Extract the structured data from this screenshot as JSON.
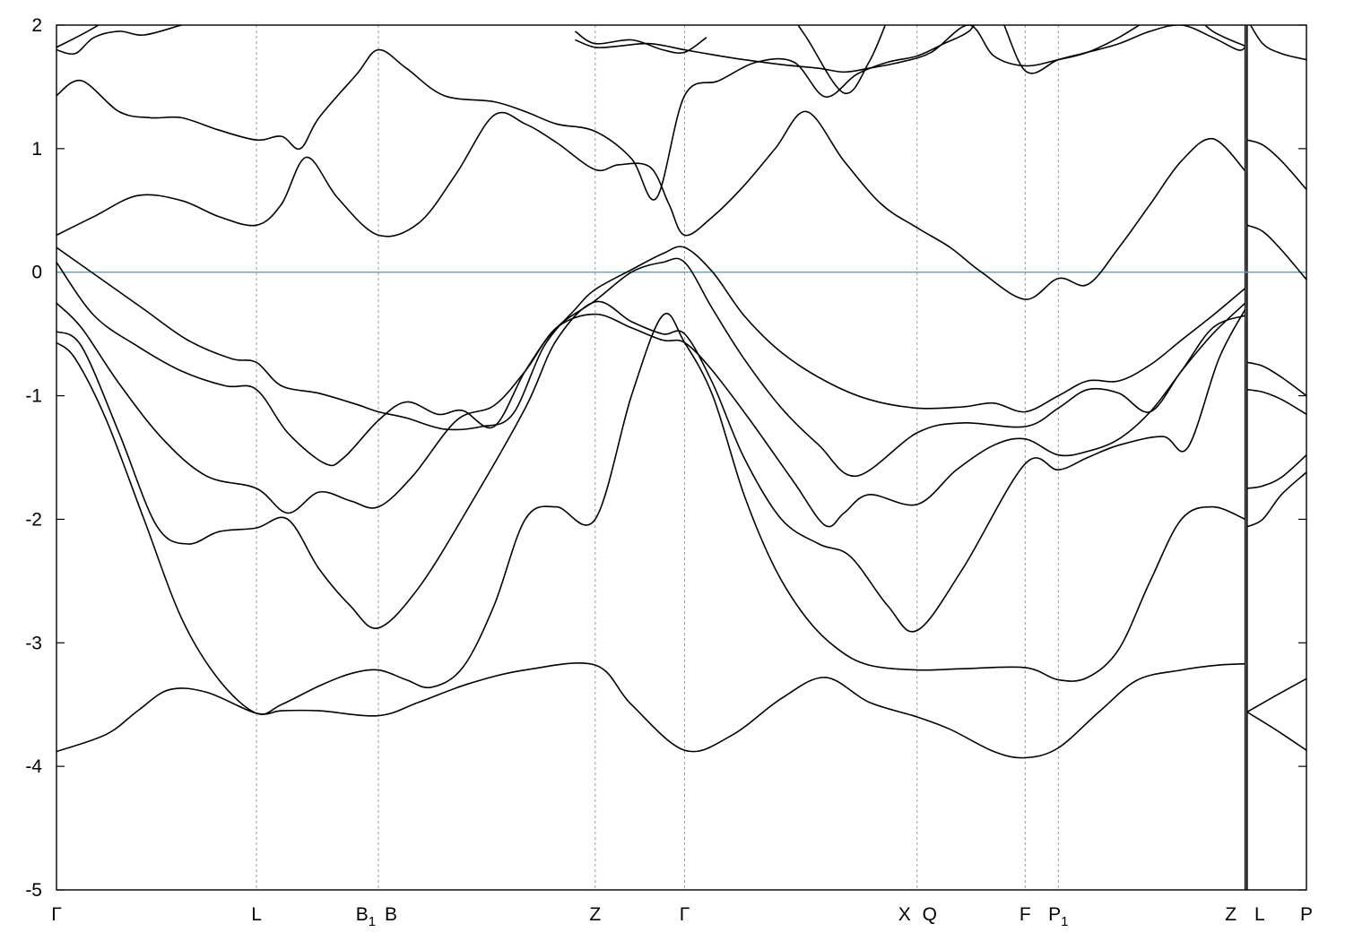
{
  "chart_data": {
    "type": "line",
    "title": "",
    "xlabel": "",
    "ylabel": "",
    "ylim": [
      -5,
      2
    ],
    "xlim": [
      0,
      20
    ],
    "y_ticks": [
      "2",
      "1",
      "0",
      "-1",
      "-2",
      "-3",
      "-4",
      "-5"
    ],
    "y_tick_values": [
      2,
      1,
      0,
      -1,
      -2,
      -3,
      -4,
      -5
    ],
    "k_points": [
      {
        "label": "Γ",
        "x": 0
      },
      {
        "label": "L",
        "x": 3.2
      },
      {
        "label": "B",
        "sub": "1",
        "label2": "B",
        "x": 5.15
      },
      {
        "label": "Z",
        "x": 8.62
      },
      {
        "label": "Γ",
        "x": 10.05
      },
      {
        "label": "X",
        "label2": "Q",
        "x": 13.77
      },
      {
        "label": "F",
        "x": 15.5
      },
      {
        "label": "P",
        "sub": "1",
        "x": 16.03
      },
      {
        "label": "Z",
        "x": 19.02
      },
      {
        "label": "L",
        "x": 19.05
      },
      {
        "label": "P",
        "x": 20
      }
    ],
    "fermi_level": 0,
    "fermi_color": "#4fa6c0",
    "grid": false,
    "series": [
      {
        "x": [
          0,
          0.8,
          1.3,
          1.8,
          2.4,
          3.2,
          3.6,
          4.2,
          5.15,
          5.8,
          6.6,
          7.5,
          8.62,
          9.2,
          10.05,
          10.8,
          11.6,
          12.3,
          13.0,
          13.77,
          14.3,
          15.0,
          15.5,
          16.03,
          16.7,
          17.3,
          18.0,
          18.6,
          19.02
        ],
        "y": [
          -3.88,
          -3.74,
          -3.55,
          -3.38,
          -3.4,
          -3.57,
          -3.55,
          -3.55,
          -3.59,
          -3.48,
          -3.33,
          -3.22,
          -3.18,
          -3.5,
          -3.87,
          -3.75,
          -3.45,
          -3.28,
          -3.48,
          -3.6,
          -3.7,
          -3.88,
          -3.93,
          -3.85,
          -3.55,
          -3.3,
          -3.22,
          -3.18,
          -3.17
        ]
      },
      {
        "x": [
          0,
          0.3,
          0.8,
          1.4,
          2.0,
          2.6,
          3.2,
          3.6,
          4.2,
          4.7,
          5.15,
          5.6,
          6.0,
          6.5,
          7.0,
          7.5,
          8.0,
          8.62,
          9.2,
          9.7,
          10.05,
          10.5,
          11.0,
          11.5,
          12.0,
          12.5,
          13.0,
          13.77,
          14.5,
          15.5,
          16.03,
          16.5,
          17.0,
          17.5,
          18.0,
          18.5,
          19.02
        ],
        "y": [
          -0.57,
          -0.7,
          -1.2,
          -2.0,
          -2.8,
          -3.3,
          -3.57,
          -3.5,
          -3.35,
          -3.25,
          -3.22,
          -3.3,
          -3.36,
          -3.2,
          -2.7,
          -2.0,
          -1.9,
          -2.0,
          -1.0,
          -0.35,
          -0.57,
          -1.0,
          -1.8,
          -2.4,
          -2.8,
          -3.05,
          -3.18,
          -3.22,
          -3.21,
          -3.2,
          -3.3,
          -3.28,
          -3.05,
          -2.5,
          -2.0,
          -1.9,
          -2.0
        ]
      },
      {
        "x": [
          0,
          0.4,
          1.0,
          1.6,
          2.1,
          2.6,
          3.2,
          3.7,
          4.2,
          4.7,
          5.15,
          5.8,
          6.6,
          7.5,
          8.0,
          8.62,
          9.2,
          9.7,
          10.05,
          10.5,
          11.0,
          11.6,
          12.2,
          12.7,
          13.3,
          13.77,
          14.5,
          15.5,
          16.03,
          16.5,
          17.0,
          17.7,
          18.1,
          18.6,
          19.02
        ],
        "y": [
          -0.48,
          -0.6,
          -1.3,
          -2.05,
          -2.2,
          -2.1,
          -2.07,
          -2.0,
          -2.4,
          -2.7,
          -2.88,
          -2.55,
          -1.9,
          -1.1,
          -0.55,
          -0.24,
          -0.4,
          -0.5,
          -0.5,
          -0.9,
          -1.5,
          -2.0,
          -2.2,
          -2.3,
          -2.7,
          -2.9,
          -2.4,
          -1.55,
          -1.6,
          -1.5,
          -1.4,
          -1.33,
          -1.42,
          -0.7,
          -0.3
        ]
      },
      {
        "x": [
          0,
          0.4,
          1.0,
          1.7,
          2.4,
          3.2,
          3.7,
          4.2,
          4.7,
          5.15,
          5.7,
          6.4,
          7.0,
          7.5,
          8.0,
          8.62,
          9.2,
          9.7,
          10.05,
          10.5,
          11.1,
          11.8,
          12.3,
          12.6,
          13.0,
          13.77,
          14.4,
          15.0,
          15.5,
          16.03,
          16.5,
          17.0,
          17.5,
          18.0,
          18.5,
          19.02
        ],
        "y": [
          -0.25,
          -0.45,
          -0.9,
          -1.35,
          -1.65,
          -1.75,
          -1.95,
          -1.78,
          -1.85,
          -1.9,
          -1.65,
          -1.2,
          -1.08,
          -0.8,
          -0.45,
          -0.34,
          -0.45,
          -0.55,
          -0.57,
          -0.8,
          -1.2,
          -1.7,
          -2.05,
          -1.95,
          -1.8,
          -1.88,
          -1.6,
          -1.4,
          -1.35,
          -1.48,
          -1.45,
          -1.35,
          -1.13,
          -0.8,
          -0.45,
          -0.35
        ]
      },
      {
        "x": [
          0,
          0.6,
          1.3,
          2.0,
          2.7,
          3.2,
          3.7,
          4.3,
          4.6,
          5.15,
          5.6,
          6.1,
          6.5,
          7.0,
          7.5,
          8.0,
          8.62,
          9.2,
          9.7,
          10.05,
          10.5,
          11.0,
          11.6,
          12.2,
          12.8,
          13.77,
          14.5,
          15.5,
          16.03,
          16.5,
          17.0,
          17.5,
          18.0,
          18.5,
          19.02
        ],
        "y": [
          0.08,
          -0.35,
          -0.6,
          -0.8,
          -0.92,
          -0.95,
          -1.3,
          -1.55,
          -1.5,
          -1.2,
          -1.05,
          -1.15,
          -1.12,
          -1.25,
          -0.8,
          -0.45,
          -0.23,
          0.0,
          0.08,
          0.08,
          -0.3,
          -0.7,
          -1.1,
          -1.4,
          -1.65,
          -1.3,
          -1.22,
          -1.25,
          -1.1,
          -0.95,
          -0.98,
          -1.13,
          -0.8,
          -0.5,
          -0.25
        ]
      },
      {
        "x": [
          0,
          0.7,
          1.4,
          2.1,
          2.8,
          3.2,
          3.6,
          4.2,
          4.8,
          5.15,
          5.6,
          6.2,
          6.8,
          7.3,
          7.8,
          8.3,
          8.62,
          9.2,
          9.7,
          10.05,
          10.5,
          11.0,
          11.6,
          12.3,
          13.0,
          13.77,
          14.5,
          15.0,
          15.5,
          16.03,
          16.5,
          17.0,
          17.5,
          18.0,
          18.5,
          19.02
        ],
        "y": [
          0.2,
          -0.05,
          -0.3,
          -0.55,
          -0.7,
          -0.73,
          -0.92,
          -0.98,
          -1.07,
          -1.13,
          -1.18,
          -1.27,
          -1.25,
          -1.15,
          -0.6,
          -0.3,
          -0.14,
          0.02,
          0.15,
          0.2,
          0.0,
          -0.35,
          -0.65,
          -0.88,
          -1.03,
          -1.1,
          -1.09,
          -1.06,
          -1.13,
          -1.0,
          -0.88,
          -0.88,
          -0.75,
          -0.55,
          -0.35,
          -0.13
        ]
      },
      {
        "x": [
          0,
          0.6,
          1.3,
          2.0,
          2.6,
          3.2,
          3.6,
          4.0,
          4.5,
          5.15,
          5.8,
          6.4,
          7.0,
          7.5,
          8.0,
          8.62,
          9.0,
          9.5,
          9.8,
          10.05,
          10.5,
          11.0,
          11.5,
          12.0,
          12.6,
          13.2,
          13.77,
          14.3,
          14.8,
          15.5,
          16.03,
          16.5,
          17.0,
          17.5,
          18.0,
          18.5,
          19.02
        ],
        "y": [
          0.3,
          0.45,
          0.62,
          0.58,
          0.45,
          0.38,
          0.55,
          0.93,
          0.6,
          0.3,
          0.4,
          0.8,
          1.27,
          1.2,
          1.05,
          0.83,
          0.87,
          0.85,
          0.55,
          0.3,
          0.45,
          0.7,
          1.0,
          1.3,
          0.9,
          0.55,
          0.36,
          0.2,
          0.0,
          -0.22,
          -0.05,
          -0.1,
          0.2,
          0.55,
          0.9,
          1.08,
          0.82
        ]
      },
      {
        "x": [
          0,
          0.4,
          1.0,
          1.5,
          2.0,
          2.6,
          3.2,
          3.6,
          3.9,
          4.2,
          4.8,
          5.15,
          5.6,
          6.2,
          7.0,
          7.5,
          8.0,
          8.62,
          9.2,
          9.6,
          10.05,
          10.6,
          11.2,
          11.8,
          12.3,
          12.8,
          13.3,
          13.77,
          14.2,
          14.6,
          15.0,
          15.5,
          16.03,
          16.5,
          17.0,
          17.5,
          18.0,
          18.5,
          18.9,
          19.02
        ],
        "y": [
          1.43,
          1.55,
          1.3,
          1.25,
          1.25,
          1.15,
          1.07,
          1.1,
          1.0,
          1.25,
          1.6,
          1.8,
          1.65,
          1.43,
          1.38,
          1.3,
          1.2,
          1.14,
          0.92,
          0.6,
          1.43,
          1.55,
          1.7,
          1.7,
          1.42,
          1.6,
          1.7,
          1.75,
          1.85,
          1.95,
          2.15,
          1.63,
          1.72,
          1.78,
          1.85,
          1.95,
          2.0,
          1.9,
          1.8,
          1.82
        ]
      },
      {
        "x": [
          0,
          0.3,
          0.6,
          1.0,
          1.4,
          2.0,
          2.4
        ],
        "y": [
          1.8,
          1.77,
          1.9,
          1.95,
          1.92,
          2.0,
          2.05
        ]
      },
      {
        "x": [
          0,
          0.5,
          1.0
        ],
        "y": [
          1.82,
          1.95,
          2.1
        ]
      },
      {
        "x": [
          8.3,
          8.62,
          9.0,
          9.5,
          10.05,
          10.5,
          11.0,
          11.6,
          12.2,
          12.6,
          13.0,
          13.5,
          14.0,
          14.6,
          15.0,
          15.5,
          16.03,
          16.5,
          17.0,
          17.5,
          18.0,
          18.5,
          19.02
        ],
        "y": [
          1.88,
          1.82,
          1.83,
          1.85,
          1.8,
          1.76,
          1.72,
          1.68,
          1.65,
          1.62,
          1.65,
          1.7,
          1.78,
          2.0,
          1.75,
          1.67,
          1.72,
          1.78,
          1.9,
          2.05,
          2.15,
          1.95,
          1.83
        ]
      },
      {
        "x": [
          8.3,
          8.62,
          9.2,
          9.7,
          10.05,
          10.4
        ],
        "y": [
          1.95,
          1.85,
          1.88,
          1.8,
          1.78,
          1.9
        ]
      },
      {
        "x": [
          11.6,
          12.0,
          12.6,
          13.0,
          13.3
        ],
        "y": [
          2.2,
          1.9,
          1.45,
          1.7,
          2.05
        ]
      },
      {
        "x": [
          19.05,
          19.5,
          20.0
        ],
        "y": [
          -3.56,
          -3.7,
          -3.87
        ]
      },
      {
        "x": [
          19.05,
          19.5,
          20.0
        ],
        "y": [
          -3.56,
          -3.43,
          -3.29
        ]
      },
      {
        "x": [
          19.05,
          19.3,
          19.6,
          20.0
        ],
        "y": [
          -2.06,
          -2.0,
          -1.8,
          -1.62
        ]
      },
      {
        "x": [
          19.05,
          19.3,
          19.6,
          20.0
        ],
        "y": [
          -1.75,
          -1.73,
          -1.66,
          -1.48
        ]
      },
      {
        "x": [
          19.05,
          19.3,
          19.6,
          20.0
        ],
        "y": [
          -0.95,
          -0.97,
          -1.03,
          -1.15
        ]
      },
      {
        "x": [
          19.05,
          19.3,
          19.6,
          20.0
        ],
        "y": [
          -0.73,
          -0.76,
          -0.85,
          -1.0
        ]
      },
      {
        "x": [
          19.05,
          19.3,
          19.6,
          20.0
        ],
        "y": [
          0.38,
          0.33,
          0.18,
          -0.06
        ]
      },
      {
        "x": [
          19.05,
          19.3,
          19.6,
          20.0
        ],
        "y": [
          1.07,
          1.03,
          0.9,
          0.67
        ]
      },
      {
        "x": [
          19.05,
          19.3,
          19.6,
          20.0
        ],
        "y": [
          2.05,
          1.85,
          1.77,
          1.72
        ]
      }
    ]
  }
}
